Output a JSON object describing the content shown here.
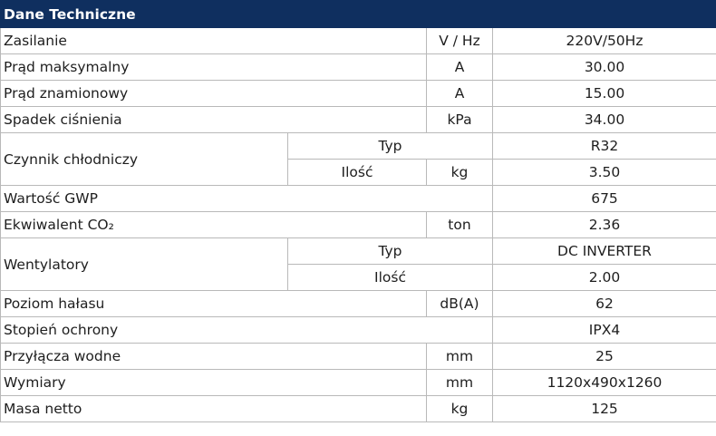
{
  "header": {
    "title": "Dane Techniczne"
  },
  "table": {
    "rows": [
      [
        "Zasilanie",
        "V / Hz",
        "220V/50Hz"
      ],
      [
        "Prąd maksymalny",
        "A",
        "30.00"
      ],
      [
        "Prąd znamionowy",
        "A",
        "15.00"
      ],
      [
        "Spadek ciśnienia",
        "kPa",
        "34.00"
      ],
      [
        "Czynnik chłodniczy",
        "Typ",
        "R32"
      ],
      [
        "Ilość",
        "kg",
        "3.50"
      ],
      [
        "Wartość GWP",
        "675"
      ],
      [
        "Ekwiwalent CO₂",
        "ton",
        "2.36"
      ],
      [
        "Wentylatory",
        "Typ",
        "DC INVERTER"
      ],
      [
        "Ilość",
        "2.00"
      ],
      [
        "Poziom hałasu",
        "dB(A)",
        "62"
      ],
      [
        "Stopień ochrony",
        "IPX4"
      ],
      [
        "Przyłącza wodne",
        "mm",
        "25"
      ],
      [
        "Wymiary",
        "mm",
        "1120x490x1260"
      ],
      [
        "Masa netto",
        "kg",
        "125"
      ]
    ]
  }
}
